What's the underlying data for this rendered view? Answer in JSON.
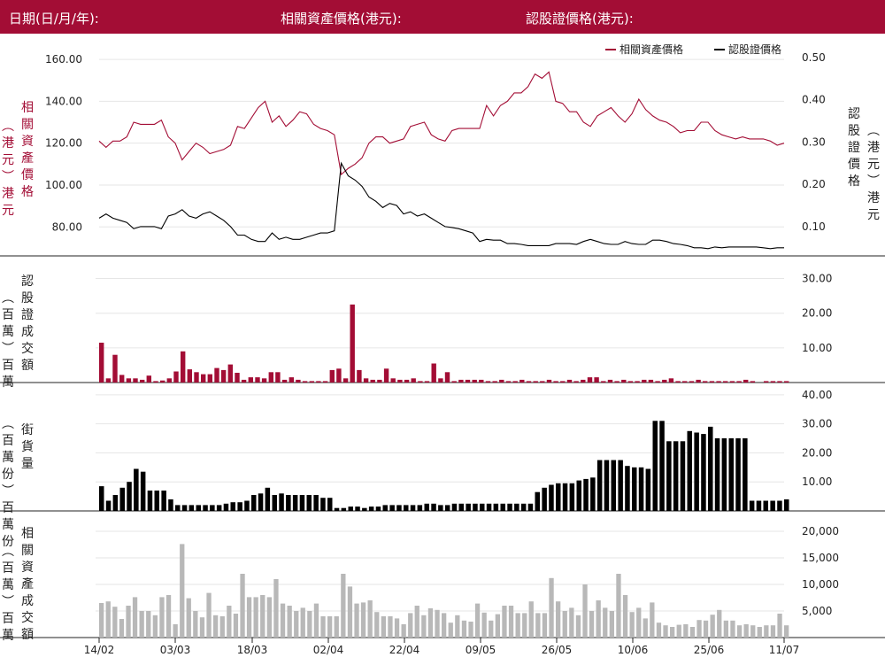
{
  "header": {
    "date_label": "日期(日/月/年):",
    "underlying_label": "相關資產價格(港元):",
    "warrant_label": "認股證價格(港元):"
  },
  "colors": {
    "brand": "#a30d35",
    "underlying": "#a30d35",
    "warrant": "#000000",
    "underlying_turnover": "#b8b8b8"
  },
  "chart_data": [
    {
      "type": "line",
      "legend": [
        "相關資產價格",
        "認股證價格"
      ],
      "legend_position": "top-right",
      "ylabel_left": "相關資產價格",
      "ylabel_left_unit": "（港元）",
      "ylabel_right": "認股證價格",
      "ylabel_right_unit": "（港元）",
      "ylim_left": [
        67,
        163
      ],
      "ylim_right": [
        0.035,
        0.51
      ],
      "yticks_left": [
        "80.00",
        "100.00",
        "120.00",
        "140.00",
        "160.00"
      ],
      "yticks_right": [
        "0.10",
        "0.20",
        "0.30",
        "0.40",
        "0.50"
      ],
      "series": [
        {
          "name": "相關資產價格",
          "values": [
            121,
            118,
            121,
            121,
            123,
            130,
            129,
            129,
            129,
            131,
            123,
            120,
            112,
            116,
            120,
            118,
            115,
            116,
            117,
            119,
            128,
            127,
            132,
            137,
            140,
            130,
            133,
            128,
            131,
            135,
            134,
            129,
            127,
            126,
            124,
            105,
            108,
            110,
            113,
            120,
            123,
            123,
            120,
            121,
            122,
            128,
            129,
            130,
            124,
            122,
            121,
            126,
            127,
            127,
            127,
            127,
            138,
            133,
            138,
            140,
            144,
            144,
            147,
            153,
            151,
            154,
            140,
            139,
            135,
            135,
            130,
            128,
            133,
            135,
            137,
            133,
            130,
            134,
            141,
            136,
            133,
            131,
            130,
            128,
            125,
            126,
            126,
            130,
            130,
            126,
            124,
            123,
            122,
            123,
            122,
            122,
            122,
            121,
            119,
            120
          ]
        },
        {
          "name": "認股證價格",
          "values": [
            0.12,
            0.13,
            0.12,
            0.115,
            0.11,
            0.095,
            0.1,
            0.1,
            0.1,
            0.095,
            0.125,
            0.13,
            0.14,
            0.125,
            0.12,
            0.13,
            0.135,
            0.125,
            0.115,
            0.1,
            0.08,
            0.08,
            0.07,
            0.065,
            0.065,
            0.085,
            0.07,
            0.075,
            0.07,
            0.07,
            0.075,
            0.08,
            0.085,
            0.085,
            0.09,
            0.25,
            0.22,
            0.21,
            0.195,
            0.17,
            0.16,
            0.145,
            0.155,
            0.15,
            0.13,
            0.135,
            0.125,
            0.13,
            0.12,
            0.11,
            0.1,
            0.098,
            0.095,
            0.09,
            0.085,
            0.065,
            0.07,
            0.068,
            0.068,
            0.06,
            0.06,
            0.058,
            0.055,
            0.055,
            0.055,
            0.055,
            0.06,
            0.06,
            0.06,
            0.058,
            0.065,
            0.07,
            0.065,
            0.06,
            0.058,
            0.058,
            0.065,
            0.06,
            0.058,
            0.058,
            0.068,
            0.068,
            0.065,
            0.06,
            0.058,
            0.055,
            0.05,
            0.05,
            0.048,
            0.052,
            0.05,
            0.052,
            0.052,
            0.052,
            0.052,
            0.052,
            0.05,
            0.048,
            0.05,
            0.05
          ]
        }
      ]
    },
    {
      "type": "bar",
      "ylabel": "認股證成交額",
      "ylabel_unit": "（百萬）",
      "ylim": [
        0,
        35.5
      ],
      "yticks": [
        "10.00",
        "20.00",
        "30.00"
      ],
      "values": [
        11.5,
        1.2,
        8,
        2.2,
        1.2,
        1.2,
        0.8,
        2,
        0.4,
        0.6,
        1.2,
        3.2,
        9,
        3.8,
        3,
        2.4,
        2.4,
        4.2,
        3.6,
        5.2,
        2.8,
        0.8,
        1.5,
        1.5,
        1.2,
        3,
        3,
        0.8,
        1.5,
        0.8,
        0.4,
        0.4,
        0.4,
        0.4,
        3.6,
        4,
        1.2,
        22.5,
        3.6,
        1.2,
        0.8,
        0.8,
        4,
        1.2,
        0.8,
        0.8,
        1.2,
        0.4,
        0.4,
        5.5,
        1.2,
        3,
        0.4,
        0.8,
        0.8,
        0.8,
        0.8,
        0.4,
        0.4,
        0.8,
        0.4,
        0.4,
        0.8,
        0.4,
        0.4,
        0.4,
        0.8,
        0.4,
        0.4,
        0.8,
        0.4,
        0.8,
        1.5,
        1.5,
        0.4,
        0.8,
        0.4,
        0.8,
        0.4,
        0.4,
        0.8,
        0.8,
        0.4,
        0.8,
        1.2,
        0.4,
        0.4,
        0.4,
        0.8,
        0.4,
        0.4,
        0.4,
        0.4,
        0.4,
        0.4,
        0.8,
        0.4,
        0,
        0.4,
        0.4,
        0.4,
        0.4
      ]
    },
    {
      "type": "bar",
      "ylabel": "街貨量",
      "ylabel_unit": "（百萬份）",
      "ylim": [
        0,
        43
      ],
      "yticks": [
        "10.00",
        "20.00",
        "30.00",
        "40.00"
      ],
      "values": [
        8.5,
        3.5,
        5.5,
        8,
        10,
        14.5,
        13.5,
        7,
        7,
        7,
        4,
        2,
        2,
        2,
        2,
        2,
        2,
        2,
        2.5,
        3,
        3,
        3.5,
        5.5,
        6,
        8,
        5.5,
        6,
        5.5,
        5.5,
        5.5,
        5.5,
        5.5,
        4.5,
        4.5,
        1,
        1,
        1.5,
        1.5,
        1,
        1.5,
        1.5,
        2,
        2,
        2,
        2,
        2,
        2,
        2.5,
        2.5,
        2,
        2,
        2.5,
        2.5,
        2.5,
        2.5,
        2.5,
        2.5,
        2.5,
        2.5,
        2.5,
        2.5,
        2.5,
        2.5,
        6.5,
        8,
        9,
        9.5,
        9.5,
        9.5,
        10.5,
        11,
        11.5,
        17.5,
        17.5,
        17.5,
        17.5,
        15.5,
        15,
        15,
        14.5,
        31,
        31,
        24,
        24,
        24,
        27.5,
        27,
        26.5,
        29,
        25,
        25,
        25,
        25,
        25,
        3.5,
        3.5,
        3.5,
        3.5,
        3.5,
        4
      ]
    },
    {
      "type": "bar",
      "ylabel": "相關資產成交額",
      "ylabel_unit": "（百萬）",
      "ylim": [
        0,
        23000
      ],
      "yticks": [
        "5,000",
        "10,000",
        "15,000",
        "20,000"
      ],
      "values": [
        6500,
        6800,
        5800,
        3500,
        6000,
        7600,
        5000,
        5000,
        4200,
        7600,
        8000,
        2500,
        17600,
        7400,
        5000,
        3800,
        8400,
        4200,
        4000,
        6000,
        4500,
        12000,
        7600,
        7600,
        8000,
        7600,
        11000,
        6400,
        6000,
        5000,
        5600,
        5000,
        6400,
        4000,
        4000,
        4000,
        12000,
        9600,
        6400,
        6600,
        7000,
        4800,
        4000,
        4000,
        3600,
        2500,
        4600,
        6000,
        4200,
        5500,
        5200,
        4600,
        2800,
        4200,
        3200,
        3000,
        6400,
        4700,
        3200,
        4400,
        6000,
        6000,
        4600,
        4600,
        6800,
        4600,
        4600,
        11200,
        6800,
        5000,
        5600,
        4200,
        10000,
        5000,
        7000,
        5600,
        5000,
        12000,
        8000,
        4800,
        5600,
        3600,
        6600,
        2800,
        2300,
        2000,
        2400,
        2500,
        2000,
        3300,
        3200,
        4300,
        5200,
        3200,
        3200,
        2300,
        2500,
        2300,
        2000,
        2300,
        2300,
        4500,
        2300
      ]
    }
  ],
  "x_axis": {
    "tick_labels": [
      "14/02",
      "03/03",
      "18/03",
      "02/04",
      "22/04",
      "09/05",
      "26/05",
      "10/06",
      "25/06",
      "11/07"
    ]
  }
}
